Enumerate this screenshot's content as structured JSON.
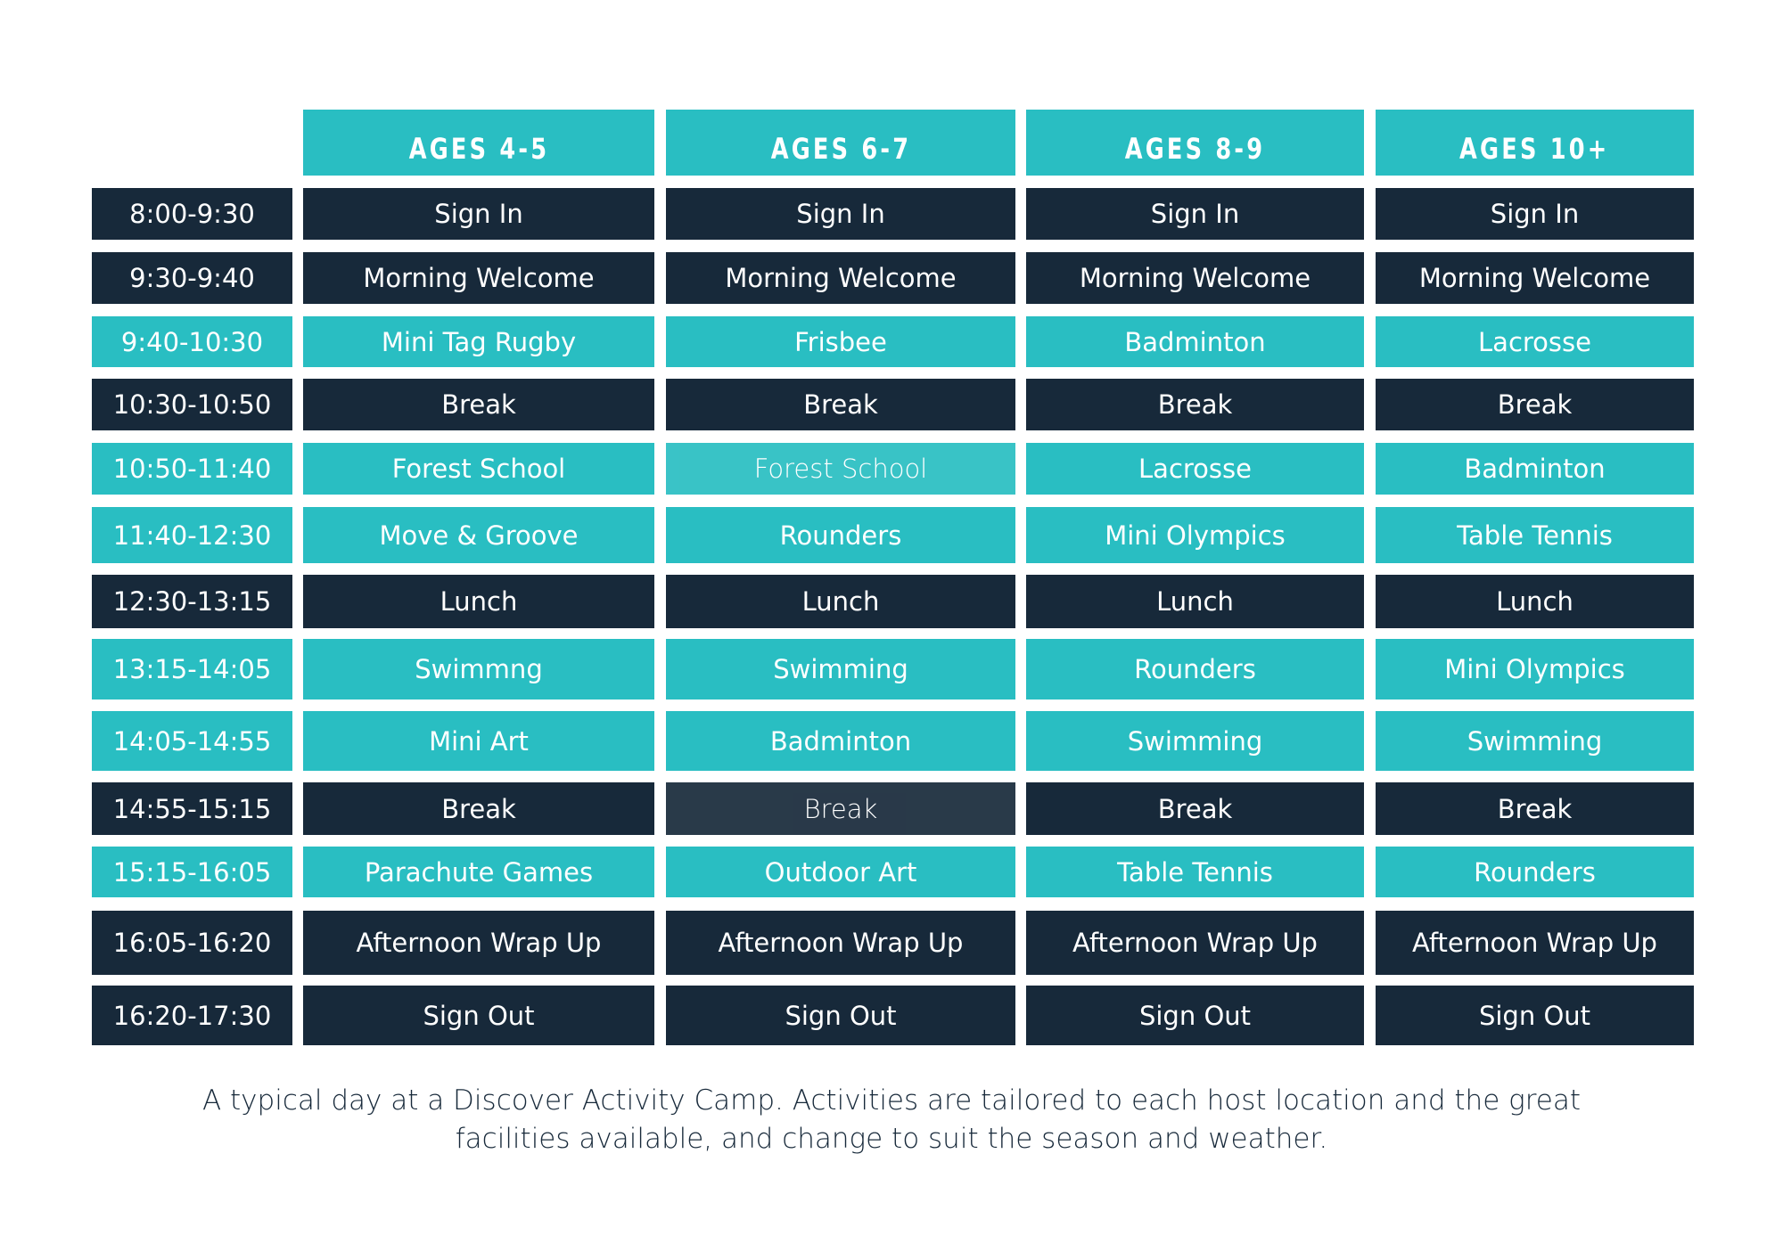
{
  "colors": {
    "teal": "#29BEC2",
    "dark": "#17293A"
  },
  "headers": [
    "AGES 4-5",
    "AGES 6-7",
    "AGES 8-9",
    "AGES 10+"
  ],
  "rows": [
    {
      "time": "8:00-9:30",
      "variant": "dark",
      "cells": [
        "Sign In",
        "Sign In",
        "Sign In",
        "Sign In"
      ]
    },
    {
      "time": "9:30-9:40",
      "variant": "dark",
      "cells": [
        "Morning Welcome",
        "Morning Welcome",
        "Morning Welcome",
        "Morning Welcome"
      ]
    },
    {
      "time": "9:40-10:30",
      "variant": "teal",
      "cells": [
        "Mini Tag Rugby",
        "Frisbee",
        "Badminton",
        "Lacrosse"
      ]
    },
    {
      "time": "10:30-10:50",
      "variant": "dark",
      "cells": [
        "Break",
        "Break",
        "Break",
        "Break"
      ]
    },
    {
      "time": "10:50-11:40",
      "variant": "teal",
      "cells": [
        "Forest School",
        "Forest School",
        "Lacrosse",
        "Badminton"
      ]
    },
    {
      "time": "11:40-12:30",
      "variant": "teal",
      "cells": [
        "Move & Groove",
        "Rounders",
        "Mini Olympics",
        "Table Tennis"
      ]
    },
    {
      "time": "12:30-13:15",
      "variant": "dark",
      "cells": [
        "Lunch",
        "Lunch",
        "Lunch",
        "Lunch"
      ]
    },
    {
      "time": "13:15-14:05",
      "variant": "teal",
      "cells": [
        "Swimmng",
        "Swimming",
        "Rounders",
        "Mini Olympics"
      ]
    },
    {
      "time": "14:05-14:55",
      "variant": "teal",
      "cells": [
        "Mini Art",
        "Badminton",
        "Swimming",
        "Swimming"
      ]
    },
    {
      "time": "14:55-15:15",
      "variant": "dark",
      "cells": [
        "Break",
        "Break",
        "Break",
        "Break"
      ]
    },
    {
      "time": "15:15-16:05",
      "variant": "teal",
      "cells": [
        "Parachute Games",
        "Outdoor Art",
        "Table Tennis",
        "Rounders"
      ]
    },
    {
      "time": "16:05-16:20",
      "variant": "dark",
      "cells": [
        "Afternoon Wrap Up",
        "Afternoon Wrap Up",
        "Afternoon Wrap Up",
        "Afternoon Wrap Up"
      ]
    },
    {
      "time": "16:20-17:30",
      "variant": "dark",
      "cells": [
        "Sign Out",
        "Sign Out",
        "Sign Out",
        "Sign Out"
      ]
    }
  ],
  "caption": {
    "line1": "A typical day at a Discover Activity Camp. Activities are tailored to each host location and the great",
    "line2": "facilities available,  and change to suit the season and weather."
  }
}
